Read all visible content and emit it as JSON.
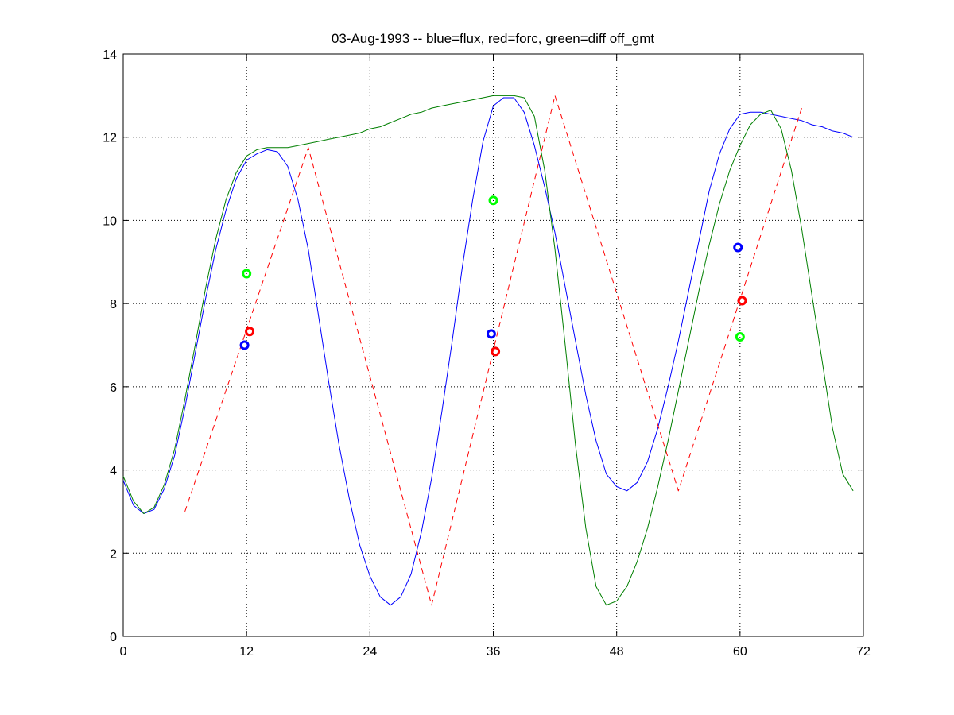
{
  "chart_data": {
    "type": "line",
    "title": "03-Aug-1993 -- blue=flux, red=forc, green=diff off_gmt",
    "xlabel": "",
    "ylabel": "",
    "xlim": [
      0,
      72
    ],
    "ylim": [
      0,
      14
    ],
    "xticks": [
      0,
      12,
      24,
      36,
      48,
      60,
      72
    ],
    "yticks": [
      0,
      2,
      4,
      6,
      8,
      10,
      12,
      14
    ],
    "xtick_labels": [
      "0",
      "12",
      "24",
      "36",
      "48",
      "60",
      "72"
    ],
    "ytick_labels": [
      "0",
      "2",
      "4",
      "6",
      "8",
      "10",
      "12",
      "14"
    ],
    "grid": true,
    "series": [
      {
        "color": "#0000ff",
        "style": "solid",
        "x": [
          0,
          1,
          2,
          3,
          4,
          5,
          6,
          7,
          8,
          9,
          10,
          11,
          12,
          13,
          14,
          15,
          16,
          17,
          18,
          19,
          20,
          21,
          22,
          23,
          24,
          25,
          26,
          27,
          28,
          29,
          30,
          31,
          32,
          33,
          34,
          35,
          36,
          37,
          38,
          39,
          40,
          41,
          42,
          43,
          44,
          45,
          46,
          47,
          48,
          49,
          50,
          51,
          52,
          53,
          54,
          55,
          56,
          57,
          58,
          59,
          60,
          61,
          62,
          63,
          64,
          65,
          66,
          67,
          68,
          69,
          70,
          71
        ],
        "y": [
          3.75,
          3.15,
          2.95,
          3.05,
          3.55,
          4.35,
          5.5,
          6.8,
          8.1,
          9.3,
          10.25,
          11.0,
          11.45,
          11.6,
          11.7,
          11.65,
          11.3,
          10.5,
          9.3,
          7.7,
          6.1,
          4.6,
          3.3,
          2.2,
          1.45,
          0.95,
          0.75,
          0.95,
          1.5,
          2.5,
          3.8,
          5.4,
          7.1,
          8.9,
          10.5,
          11.9,
          12.75,
          12.95,
          12.95,
          12.6,
          11.8,
          10.8,
          9.7,
          8.4,
          7.1,
          5.8,
          4.7,
          3.9,
          3.6,
          3.5,
          3.7,
          4.2,
          5.0,
          6.0,
          7.1,
          8.3,
          9.5,
          10.7,
          11.6,
          12.2,
          12.55,
          12.6,
          12.6,
          12.55,
          12.5,
          12.45,
          12.4,
          12.3,
          12.25,
          12.15,
          12.1,
          12.0
        ]
      },
      {
        "color": "#ff0000",
        "style": "dashed",
        "x": [
          6,
          18,
          30,
          42,
          54,
          66
        ],
        "y": [
          3.0,
          11.75,
          0.75,
          13.0,
          3.5,
          12.7
        ]
      },
      {
        "color": "#007f00",
        "style": "solid",
        "x": [
          0,
          1,
          2,
          3,
          4,
          5,
          6,
          7,
          8,
          9,
          10,
          11,
          12,
          13,
          14,
          15,
          16,
          17,
          18,
          19,
          20,
          21,
          22,
          23,
          24,
          25,
          26,
          27,
          28,
          29,
          30,
          31,
          32,
          33,
          34,
          35,
          36,
          37,
          38,
          39,
          40,
          41,
          42,
          43,
          44,
          45,
          46,
          47,
          48,
          49,
          50,
          51,
          52,
          53,
          54,
          55,
          56,
          57,
          58,
          59,
          60,
          61,
          62,
          63,
          64,
          65,
          66,
          67,
          68,
          69,
          70,
          71
        ],
        "y": [
          3.85,
          3.25,
          2.95,
          3.1,
          3.65,
          4.5,
          5.7,
          7.0,
          8.35,
          9.55,
          10.5,
          11.15,
          11.55,
          11.7,
          11.75,
          11.75,
          11.75,
          11.8,
          11.85,
          11.9,
          11.95,
          12.0,
          12.05,
          12.1,
          12.2,
          12.25,
          12.35,
          12.45,
          12.55,
          12.6,
          12.7,
          12.75,
          12.8,
          12.85,
          12.9,
          12.95,
          13.0,
          13.0,
          13.0,
          12.95,
          12.5,
          11.2,
          9.3,
          7.0,
          4.6,
          2.6,
          1.2,
          0.75,
          0.85,
          1.2,
          1.8,
          2.6,
          3.6,
          4.7,
          5.9,
          7.1,
          8.3,
          9.4,
          10.4,
          11.2,
          11.8,
          12.3,
          12.55,
          12.65,
          12.2,
          11.2,
          9.8,
          8.2,
          6.6,
          5.0,
          3.9,
          3.5
        ]
      }
    ],
    "markers": [
      {
        "x": 11.8,
        "y": 7.0,
        "color": "#0000ff"
      },
      {
        "x": 12.3,
        "y": 7.33,
        "color": "#ff0000"
      },
      {
        "x": 12.0,
        "y": 8.72,
        "color": "#00ff00"
      },
      {
        "x": 35.8,
        "y": 7.27,
        "color": "#0000ff"
      },
      {
        "x": 36.2,
        "y": 6.85,
        "color": "#ff0000"
      },
      {
        "x": 36.0,
        "y": 10.48,
        "color": "#00ff00"
      },
      {
        "x": 59.8,
        "y": 9.35,
        "color": "#0000ff"
      },
      {
        "x": 60.2,
        "y": 8.07,
        "color": "#ff0000"
      },
      {
        "x": 60.0,
        "y": 7.2,
        "color": "#00ff00"
      }
    ]
  }
}
